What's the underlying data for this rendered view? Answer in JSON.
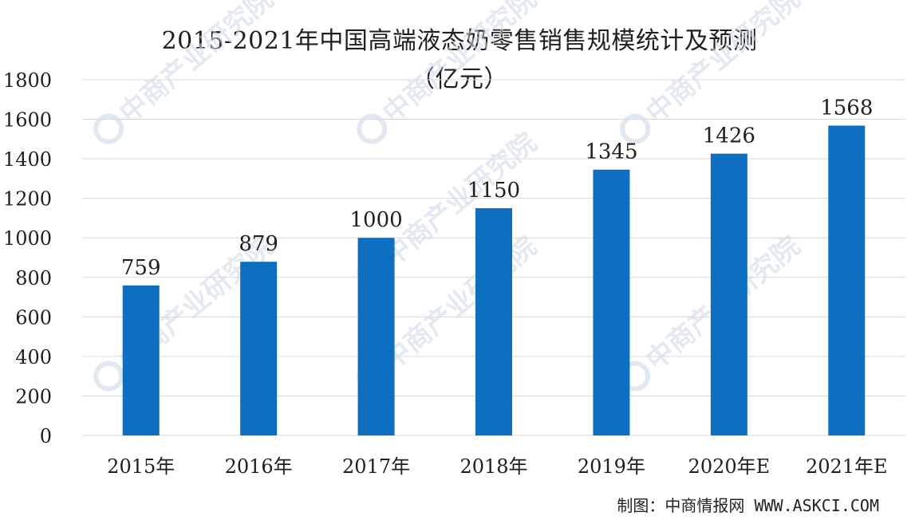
{
  "chart_data": {
    "type": "bar",
    "title": "2015-2021年中国高端液态奶零售销售规模统计及预测",
    "subtitle": "（亿元）",
    "categories": [
      "2015年",
      "2016年",
      "2017年",
      "2018年",
      "2019年",
      "2020年E",
      "2021年E"
    ],
    "values": [
      759,
      879,
      1000,
      1150,
      1345,
      1426,
      1568
    ],
    "data_labels": [
      "759",
      "879",
      "1000",
      "1150",
      "1345",
      "1426",
      "1568"
    ],
    "xlabel": "",
    "ylabel": "",
    "ylim": [
      0,
      1800
    ],
    "yticks": [
      0,
      200,
      400,
      600,
      800,
      1000,
      1200,
      1400,
      1600,
      1800
    ],
    "ytick_labels": [
      "0",
      "200",
      "400",
      "600",
      "800",
      "1000",
      "1200",
      "1400",
      "1600",
      "1800"
    ],
    "grid": true,
    "legend": "none",
    "bar_color": "#0e6fc1",
    "grid_color": "#d9d9d9"
  },
  "source": "制图：中商情报网 WWW.ASKCI.COM",
  "watermark": "中商产业研究院",
  "watermark_color": "#cfd8e6"
}
